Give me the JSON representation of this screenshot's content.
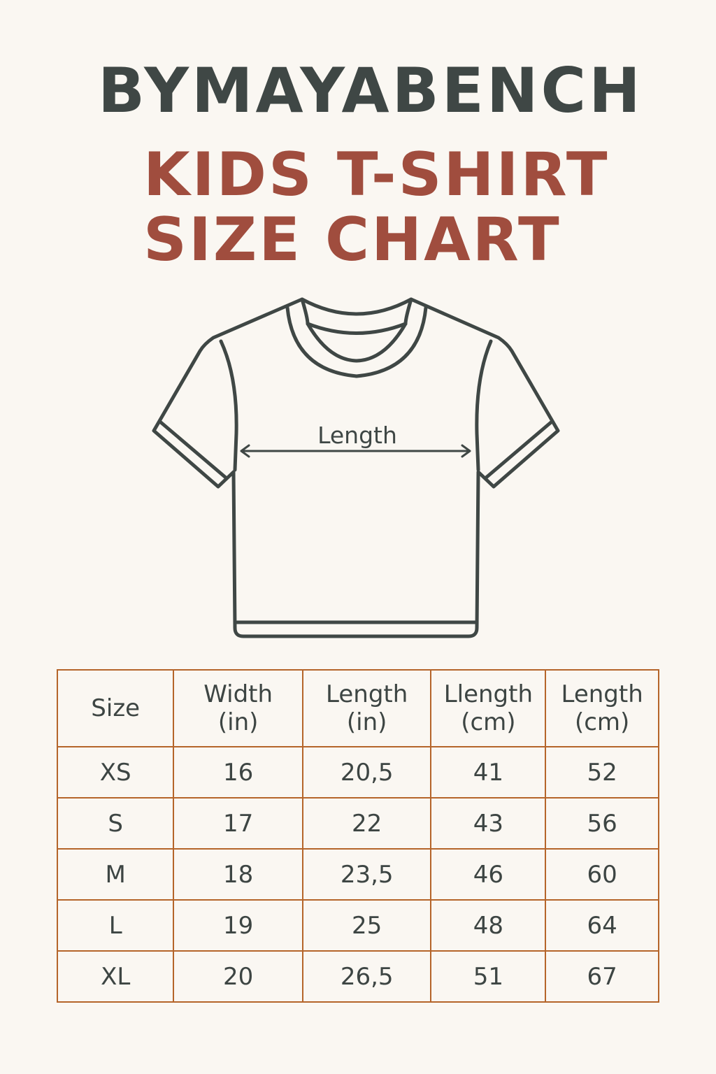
{
  "brand": "BYMAYABENCH",
  "title_line1": "KIDS T-SHIRT",
  "title_line2": "SIZE CHART",
  "diagram": {
    "measure_label": "Length"
  },
  "colors": {
    "background": "#faf7f2",
    "text": "#3d4543",
    "accent": "#a04d3e",
    "table_border": "#b5652a"
  },
  "table": {
    "headers": [
      {
        "l1": "Size",
        "l2": ""
      },
      {
        "l1": "Width",
        "l2": "(in)"
      },
      {
        "l1": "Length",
        "l2": "(in)"
      },
      {
        "l1": "Llength",
        "l2": "(cm)"
      },
      {
        "l1": "Length",
        "l2": "(cm)"
      }
    ],
    "rows": [
      [
        "XS",
        "16",
        "20,5",
        "41",
        "52"
      ],
      [
        "S",
        "17",
        "22",
        "43",
        "56"
      ],
      [
        "M",
        "18",
        "23,5",
        "46",
        "60"
      ],
      [
        "L",
        "19",
        "25",
        "48",
        "64"
      ],
      [
        "XL",
        "20",
        "26,5",
        "51",
        "67"
      ]
    ]
  }
}
